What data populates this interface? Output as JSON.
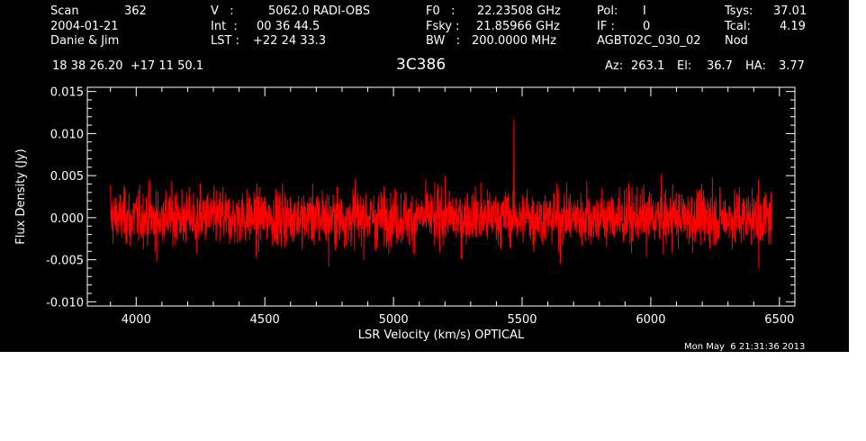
{
  "header": {
    "scan_label": "Scan",
    "scan_value": "362",
    "date": "2004-01-21",
    "observers": "Danie & Jim",
    "v_label": "V   :",
    "v_value": "5062.0 RADI-OBS",
    "int_label": "Int  :",
    "int_value": "00 36 44.5",
    "lst_label": "LST :",
    "lst_value": "+22 24 33.3",
    "f0_label": "F0   :",
    "f0_value": "22.23508 GHz",
    "fsky_label": "Fsky :",
    "fsky_value": "21.85966 GHz",
    "bw_label": "BW   :",
    "bw_value": "200.0000 MHz",
    "pol_label": "Pol:",
    "pol_value": "I",
    "if_label": "IF :",
    "if_value": "0",
    "project": "AGBT02C_030_02",
    "tsys_label": "Tsys:",
    "tsys_value": "37.01",
    "tcal_label": "Tcal:",
    "tcal_value": "4.19",
    "mode": "Nod",
    "coords": "18 38 26.20  +17 11 50.1",
    "source": "3C386",
    "az_label": "Az:",
    "az_value": "263.1",
    "el_label": "El:",
    "el_value": "36.7",
    "ha_label": "HA:",
    "ha_value": "3.77",
    "timestamp": "Mon May  6 21:31:36 2013"
  },
  "chart_data": {
    "type": "line",
    "xlabel": "LSR Velocity (km/s) OPTICAL",
    "ylabel": "Flux Density (Jy)",
    "xlim": [
      3810,
      6560
    ],
    "ylim": [
      -0.0105,
      0.0155
    ],
    "xticks": [
      4000,
      4500,
      5000,
      5500,
      6000,
      6500
    ],
    "xtick_labels": [
      "4000",
      "4500",
      "5000",
      "5500",
      "6000",
      "6500"
    ],
    "yticks": [
      -0.01,
      -0.005,
      0.0,
      0.005,
      0.01,
      0.015
    ],
    "ytick_labels": [
      "-0.010",
      "-0.005",
      "0.000",
      "0.005",
      "0.010",
      "0.015"
    ],
    "series": [
      {
        "color": "#ff0000",
        "x_start": 3900,
        "x_end": 6470,
        "mean": 0.0,
        "rms": 0.0025,
        "values": [
          0.0039,
          -0.0021,
          0.0012,
          -0.0034,
          0.0026,
          -0.0008,
          0.0045,
          -0.0052,
          0.0018,
          -0.0011,
          0.0031,
          -0.0027,
          0.0009,
          -0.0043,
          0.0022,
          0.0005,
          -0.0019,
          0.0037,
          -0.0031,
          0.0014,
          -0.0006,
          0.0028,
          -0.0047,
          0.0016,
          0.0003,
          -0.0025,
          0.0041,
          -0.0012,
          0.0007,
          -0.0036,
          0.0024,
          -0.0015,
          0.0033,
          -0.0058,
          0.0011,
          0.0019,
          -0.0029,
          0.0046,
          -0.0009,
          0.0002,
          -0.0039,
          0.0027,
          -0.0018,
          0.0035,
          -0.0022,
          0.0008,
          -0.0044,
          0.0021,
          0.0013,
          -0.0033,
          0.0038,
          -0.0007,
          0.0006,
          -0.0049,
          0.0029,
          -0.0014,
          0.0042,
          -0.0026,
          0.0001,
          -0.0037,
          0.0025,
          0.0117,
          -0.0017,
          0.0034,
          -0.0041,
          0.0015,
          -0.0004,
          0.003,
          -0.0055,
          0.0019,
          0.001,
          -0.0023,
          0.0044,
          -0.0013,
          0.0004,
          -0.0035,
          0.0023,
          -0.0016,
          0.0036,
          -0.0028,
          0.0012,
          -0.0046,
          0.002,
          0.0007,
          -0.0031,
          0.004,
          -0.001,
          0.0003,
          -0.0042,
          0.0032,
          -0.0019,
          0.0048,
          -0.0024,
          0.0009,
          -0.0038,
          0.0026,
          -0.0012,
          0.0035,
          -0.006,
          0.0017
        ]
      }
    ]
  }
}
